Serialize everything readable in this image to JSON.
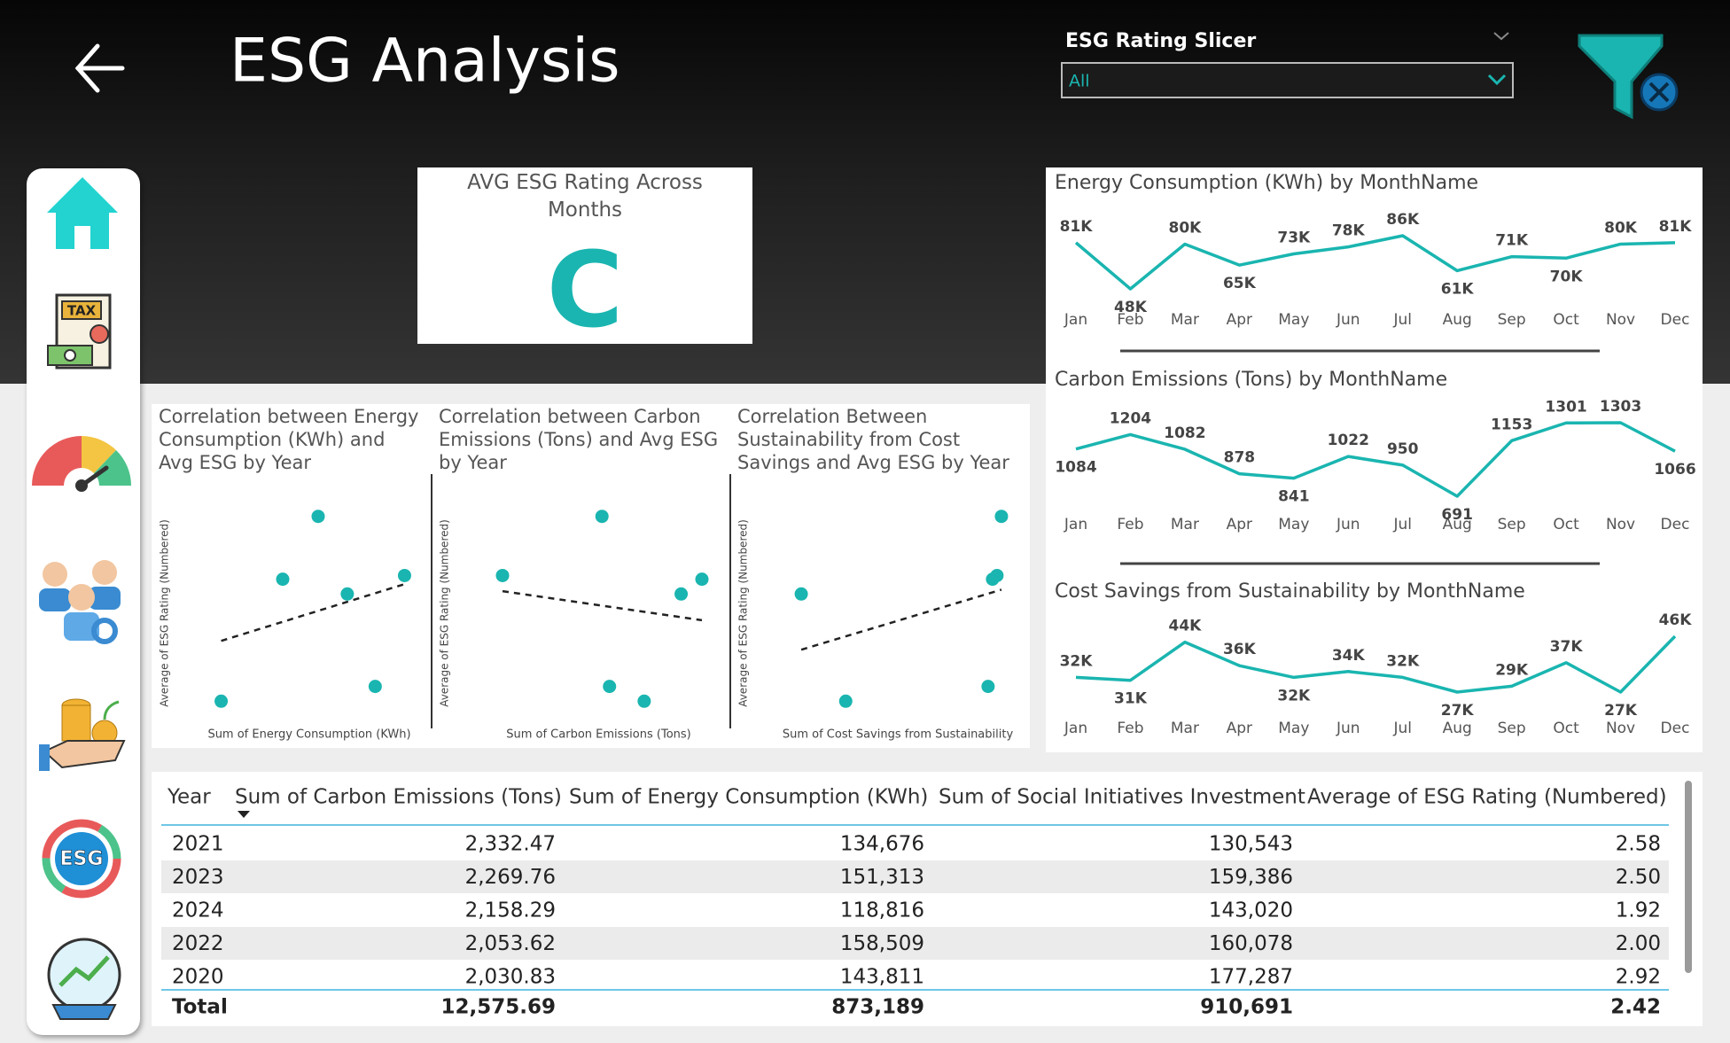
{
  "header": {
    "title": "ESG Analysis"
  },
  "slicer": {
    "label": "ESG Rating Slicer",
    "selected": "All"
  },
  "sidebar": {
    "tax_icon": "TAX",
    "esg_icon": "ESG"
  },
  "kpi": {
    "title": "AVG ESG Rating Across Months",
    "value": "C"
  },
  "chart_data": [
    {
      "type": "line",
      "title": "Energy Consumption (KWh) by MonthName",
      "color": "#1ab5b0",
      "categories": [
        "Jan",
        "Feb",
        "Mar",
        "Apr",
        "May",
        "Jun",
        "Jul",
        "Aug",
        "Sep",
        "Oct",
        "Nov",
        "Dec"
      ],
      "values": [
        81000,
        48000,
        80000,
        65000,
        73000,
        78000,
        86000,
        61000,
        71000,
        70000,
        80000,
        81000
      ],
      "value_labels": [
        "81K",
        "48K",
        "80K",
        "65K",
        "73K",
        "78K",
        "86K",
        "61K",
        "71K",
        "70K",
        "80K",
        "81K"
      ]
    },
    {
      "type": "line",
      "title": "Carbon Emissions (Tons) by MonthName",
      "color": "#1ab5b0",
      "categories": [
        "Jan",
        "Feb",
        "Mar",
        "Apr",
        "May",
        "Jun",
        "Jul",
        "Aug",
        "Sep",
        "Oct",
        "Nov",
        "Dec"
      ],
      "values": [
        1084,
        1204,
        1082,
        878,
        841,
        1022,
        950,
        691,
        1153,
        1301,
        1303,
        1066
      ]
    },
    {
      "type": "line",
      "title": "Cost Savings from Sustainability by MonthName",
      "color": "#1ab5b0",
      "categories": [
        "Jan",
        "Feb",
        "Mar",
        "Apr",
        "May",
        "Jun",
        "Jul",
        "Aug",
        "Sep",
        "Oct",
        "Nov",
        "Dec"
      ],
      "values": [
        32000,
        31000,
        44000,
        36000,
        32000,
        34000,
        32000,
        27000,
        29000,
        37000,
        27000,
        46000
      ],
      "value_labels": [
        "32K",
        "31K",
        "44K",
        "36K",
        "32K",
        "34K",
        "32K",
        "27K",
        "29K",
        "37K",
        "27K",
        "46K"
      ]
    },
    {
      "type": "scatter",
      "title": "Correlation between Energy Consumption (KWh) and Avg ESG by Year",
      "color": "#1ab5b0",
      "trendline": true,
      "x_label": "Sum of Energy Consumption (KWh)",
      "y_label": "Average of ESG Rating (Numbered)",
      "x": [
        118816,
        134676,
        143811,
        151313,
        158509,
        166064
      ],
      "values": [
        1.92,
        2.58,
        2.92,
        2.5,
        2.0,
        2.6
      ]
    },
    {
      "type": "scatter",
      "title": "Correlation between Carbon Emissions (Tons) and Avg ESG by Year",
      "color": "#1ab5b0",
      "trendline": true,
      "x_label": "Sum of Carbon Emissions (Tons)",
      "y_label": "Average of ESG Rating (Numbered)",
      "x": [
        1730.72,
        2030.83,
        2053.62,
        2158.29,
        2269.76,
        2332.47
      ],
      "values": [
        2.6,
        2.92,
        2.0,
        1.92,
        2.5,
        2.58
      ]
    },
    {
      "type": "scatter",
      "title": "Correlation Between Sustainability from Cost Savings and Avg ESG by Year",
      "color": "#1ab5b0",
      "trendline": true,
      "x_label": "Sum of Cost Savings from Sustainability",
      "y_label": "Average of ESG Rating (Numbered)",
      "x": [
        53000,
        58000,
        74000,
        74500,
        75000,
        75500
      ],
      "values": [
        2.5,
        1.92,
        2.0,
        2.58,
        2.6,
        2.92
      ]
    }
  ],
  "table": {
    "columns": [
      "Year",
      "Sum of Carbon Emissions (Tons)",
      "Sum of Energy Consumption (KWh)",
      "Sum of Social Initiatives Investment",
      "Average of ESG Rating (Numbered)"
    ],
    "rows": [
      [
        "2021",
        "2,332.47",
        "134,676",
        "130,543",
        "2.58"
      ],
      [
        "2023",
        "2,269.76",
        "151,313",
        "159,386",
        "2.50"
      ],
      [
        "2024",
        "2,158.29",
        "118,816",
        "143,020",
        "1.92"
      ],
      [
        "2022",
        "2,053.62",
        "158,509",
        "160,078",
        "2.00"
      ],
      [
        "2020",
        "2,030.83",
        "143,811",
        "177,287",
        "2.92"
      ]
    ],
    "total": [
      "Total",
      "12,575.69",
      "873,189",
      "910,691",
      "2.42"
    ]
  }
}
